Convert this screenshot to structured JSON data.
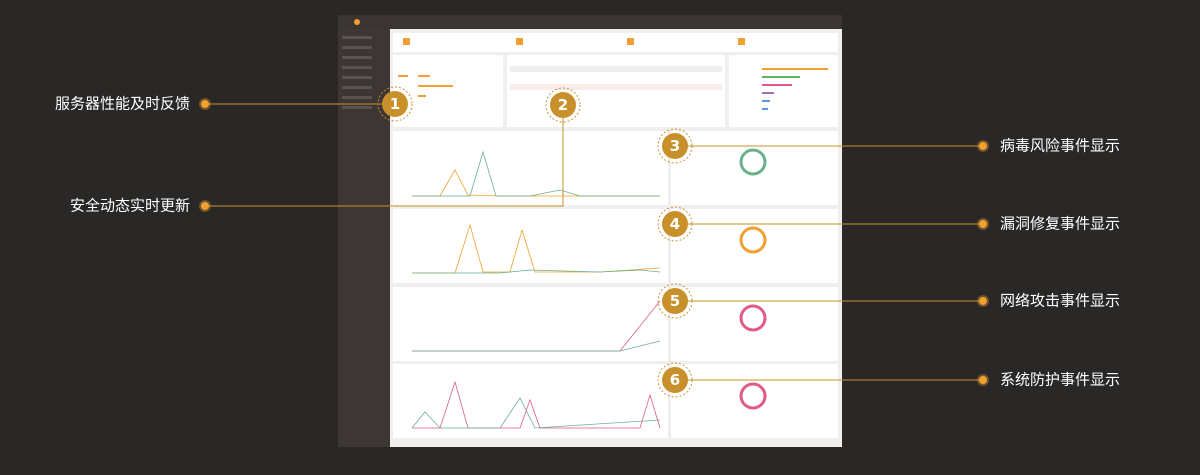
{
  "callouts_left": [
    {
      "number": "1",
      "label": "服务器性能及时反馈"
    },
    {
      "number": "2",
      "label": "安全动态实时更新"
    }
  ],
  "callouts_right": [
    {
      "number": "3",
      "label": "病毒风险事件显示"
    },
    {
      "number": "4",
      "label": "漏洞修复事件显示"
    },
    {
      "number": "5",
      "label": "网络攻击事件显示"
    },
    {
      "number": "6",
      "label": "系统防护事件显示"
    }
  ]
}
